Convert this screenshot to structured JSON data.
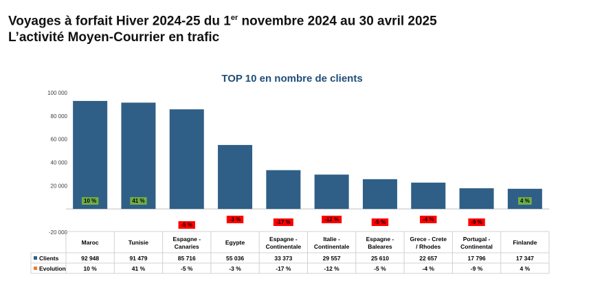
{
  "header": {
    "title_before": "Voyages à forfait Hiver 2024-25 du 1",
    "title_sup": "er",
    "title_after": " novembre 2024 au 30 avril 2025",
    "subtitle": "L’activité Moyen-Courrier en trafic"
  },
  "chart_data": {
    "type": "bar",
    "title": "TOP 10 en nombre de clients",
    "categories": [
      [
        "Maroc"
      ],
      [
        "Tunisie"
      ],
      [
        "Espagne -",
        "Canaries"
      ],
      [
        "Egypte"
      ],
      [
        "Espagne -",
        "Continentale"
      ],
      [
        "Italie -",
        "Continentale"
      ],
      [
        "Espagne -",
        "Baleares"
      ],
      [
        "Grece - Crete",
        "/ Rhodes"
      ],
      [
        "Portugal -",
        "Continental"
      ],
      [
        "Finlande"
      ]
    ],
    "yticks": [
      "100 000",
      "80 000",
      "60 000",
      "40 000",
      "20 000",
      "",
      "-20 000"
    ],
    "ylim": [
      -20000,
      100000
    ],
    "series": [
      {
        "name": "Clients",
        "color": "#2f5f86",
        "values": [
          92948,
          91479,
          85716,
          55036,
          33373,
          29557,
          25610,
          22657,
          17796,
          17347
        ],
        "labels": [
          "92 948",
          "91 479",
          "85 716",
          "55 036",
          "33 373",
          "29 557",
          "25 610",
          "22 657",
          "17 796",
          "17 347"
        ]
      },
      {
        "name": "Evolution",
        "color": "#ed7d31",
        "values": [
          10,
          41,
          -5,
          -3,
          -17,
          -12,
          -5,
          -4,
          -9,
          4
        ],
        "labels": [
          "10 %",
          "41 %",
          "-5 %",
          "-3 %",
          "-17 %",
          "-12 %",
          "-5 %",
          "-4 %",
          "-9 %",
          "4 %"
        ],
        "badge_positive_color": "#70ad47",
        "badge_negative_color": "#ff0000"
      }
    ]
  }
}
